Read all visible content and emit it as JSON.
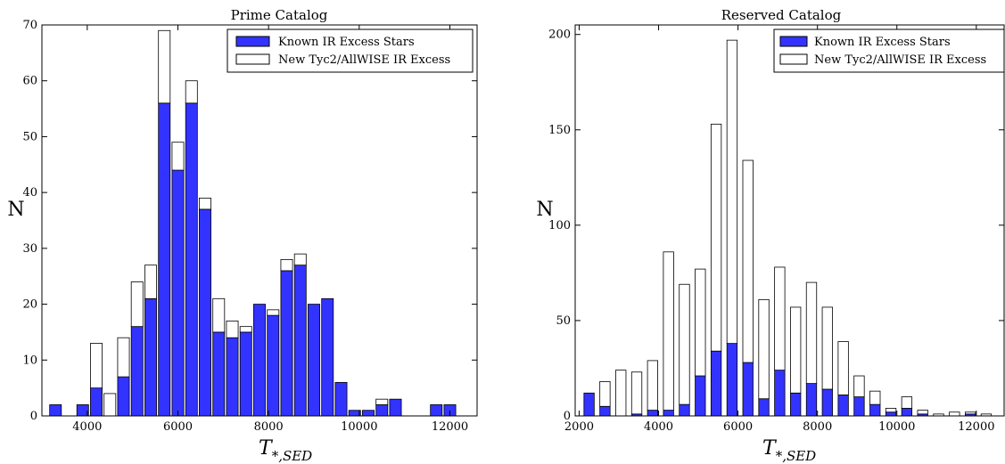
{
  "colors": {
    "known": "#3333ff",
    "new": "#ffffff",
    "edge": "#000000"
  },
  "chart_data": [
    {
      "type": "bar",
      "stacked": true,
      "title": "Prime Catalog",
      "ylabel": "N",
      "xlabel_base": "T",
      "xlabel_sub": "*,SED",
      "xlim": [
        3000,
        12600
      ],
      "ylim": [
        0,
        70
      ],
      "xticks": [
        4000,
        6000,
        8000,
        10000,
        12000
      ],
      "yticks": [
        0,
        10,
        20,
        30,
        40,
        50,
        60,
        70
      ],
      "bin_width": 300,
      "legend_position": "top-right",
      "x": [
        3300,
        3900,
        4200,
        4500,
        4800,
        5100,
        5400,
        5700,
        6000,
        6300,
        6600,
        6900,
        7200,
        7500,
        7800,
        8100,
        8400,
        8700,
        9000,
        9300,
        9600,
        9900,
        10200,
        10500,
        10800,
        11700,
        12000
      ],
      "series": [
        {
          "name": "Known IR Excess Stars",
          "role": "known",
          "values": [
            2,
            2,
            5,
            0,
            7,
            16,
            21,
            56,
            44,
            56,
            37,
            15,
            14,
            15,
            20,
            18,
            26,
            27,
            20,
            21,
            6,
            1,
            1,
            2,
            3,
            2,
            2
          ]
        },
        {
          "name": "New Tyc2/AllWISE IR Excess",
          "role": "new",
          "values": [
            0,
            0,
            8,
            4,
            7,
            8,
            6,
            13,
            5,
            4,
            2,
            6,
            3,
            1,
            0,
            1,
            2,
            2,
            0,
            0,
            0,
            0,
            0,
            1,
            0,
            0,
            0
          ]
        }
      ]
    },
    {
      "type": "bar",
      "stacked": true,
      "title": "Reserved Catalog",
      "ylabel": "N",
      "xlabel_base": "T",
      "xlabel_sub": "*,SED",
      "xlim": [
        1900,
        12700
      ],
      "ylim": [
        0,
        205
      ],
      "xticks": [
        2000,
        4000,
        6000,
        8000,
        10000,
        12000
      ],
      "yticks": [
        0,
        50,
        100,
        150,
        200
      ],
      "bin_width": 300,
      "legend_position": "top-right",
      "x": [
        2250,
        2650,
        3050,
        3450,
        3850,
        4250,
        4650,
        5050,
        5450,
        5850,
        6250,
        6650,
        7050,
        7450,
        7850,
        8250,
        8650,
        9050,
        9450,
        9850,
        10250,
        10650,
        11050,
        11450,
        11850,
        12250
      ],
      "series": [
        {
          "name": "Known IR Excess Stars",
          "role": "known",
          "values": [
            12,
            5,
            0,
            1,
            3,
            3,
            6,
            21,
            34,
            38,
            28,
            9,
            24,
            12,
            17,
            14,
            11,
            10,
            6,
            2,
            4,
            1,
            0,
            0,
            1,
            0
          ]
        },
        {
          "name": "New Tyc2/AllWISE IR Excess",
          "role": "new",
          "values": [
            0,
            13,
            24,
            22,
            26,
            83,
            63,
            56,
            119,
            159,
            106,
            52,
            54,
            45,
            53,
            43,
            28,
            11,
            7,
            2,
            6,
            2,
            1,
            2,
            1,
            1
          ]
        }
      ]
    }
  ]
}
